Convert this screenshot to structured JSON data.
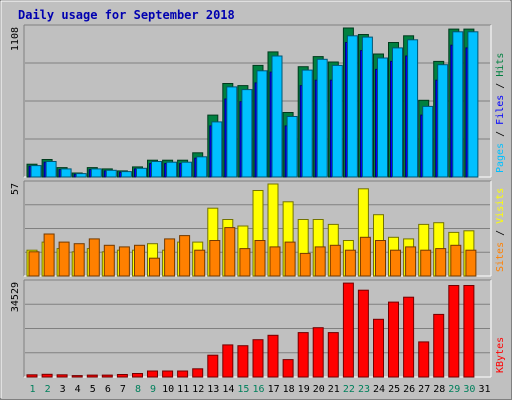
{
  "chart_data": {
    "type": "bar",
    "title": "Daily usage for September 2018",
    "categories": [
      "1",
      "2",
      "3",
      "4",
      "5",
      "6",
      "7",
      "8",
      "9",
      "10",
      "11",
      "12",
      "13",
      "14",
      "15",
      "16",
      "17",
      "18",
      "19",
      "20",
      "21",
      "22",
      "23",
      "24",
      "25",
      "26",
      "27",
      "28",
      "29",
      "30",
      "31"
    ],
    "weekend_days": [
      "1",
      "2",
      "8",
      "9",
      "15",
      "16",
      "22",
      "23",
      "29",
      "30"
    ],
    "colors": {
      "hits": "#008040",
      "files": "#0000ff",
      "pages": "#00c0ff",
      "visits": "#ffff00",
      "sites": "#ff8000",
      "kbytes": "#ff0000",
      "background": "#c0c0c0",
      "title": "#0000b0",
      "weekday_label": "#000000",
      "weekend_label": "#00805c"
    },
    "panels": [
      {
        "id": "hits",
        "ymax_label": "1108",
        "legend": [
          {
            "key": "pages",
            "text": "Pages",
            "color": "#00c0ff"
          },
          {
            "key": "files",
            "text": "Files",
            "color": "#0000ff"
          },
          {
            "key": "hits",
            "text": "Hits",
            "color": "#008040"
          }
        ],
        "ylim": [
          0,
          1108
        ],
        "series": [
          {
            "name": "Hits",
            "values": [
              95,
              130,
              70,
              30,
              70,
              60,
              45,
              75,
              125,
              125,
              125,
              180,
              460,
              695,
              680,
              830,
              930,
              480,
              820,
              895,
              855,
              1108,
              1060,
              915,
              1000,
              1050,
              570,
              860,
              1100,
              1100,
              0
            ]
          },
          {
            "name": "Files",
            "values": [
              80,
              110,
              55,
              20,
              55,
              45,
              35,
              60,
              100,
              100,
              100,
              140,
              380,
              580,
              560,
              700,
              780,
              380,
              680,
              720,
              720,
              1000,
              940,
              800,
              860,
              900,
              460,
              720,
              980,
              960,
              0
            ]
          },
          {
            "name": "Pages",
            "values": [
              85,
              115,
              60,
              25,
              60,
              50,
              40,
              65,
              115,
              110,
              110,
              150,
              410,
              670,
              650,
              790,
              900,
              450,
              795,
              875,
              830,
              1050,
              1040,
              885,
              960,
              1020,
              525,
              835,
              1080,
              1080,
              0
            ]
          }
        ]
      },
      {
        "id": "visits",
        "ymax_label": "57",
        "legend": [
          {
            "key": "sites",
            "text": "Sites",
            "color": "#ff8000"
          },
          {
            "key": "visits",
            "text": "Visits",
            "color": "#ffff00"
          }
        ],
        "ylim": [
          0,
          57
        ],
        "series": [
          {
            "name": "Visits",
            "values": [
              16,
              21,
              17,
              15,
              17,
              15,
              16,
              16,
              20,
              16,
              21,
              21,
              42,
              35,
              31,
              53,
              57,
              46,
              35,
              35,
              32,
              22,
              54,
              38,
              24,
              23,
              32,
              33,
              27,
              28,
              0
            ]
          },
          {
            "name": "Sites",
            "values": [
              15,
              26,
              21,
              20,
              23,
              19,
              18,
              19,
              11,
              23,
              25,
              16,
              22,
              30,
              17,
              22,
              18,
              21,
              14,
              18,
              19,
              16,
              24,
              22,
              16,
              18,
              16,
              17,
              19,
              16,
              0
            ]
          }
        ]
      },
      {
        "id": "kbytes",
        "ymax_label": "34529",
        "legend": [
          {
            "key": "kbytes",
            "text": "KBytes",
            "color": "#ff0000"
          }
        ],
        "ylim": [
          0,
          34529
        ],
        "series": [
          {
            "name": "KBytes",
            "values": [
              800,
              1000,
              800,
              500,
              700,
              700,
              900,
              1300,
              2200,
              2200,
              2200,
              3000,
              8000,
              11800,
              11500,
              13700,
              15300,
              6400,
              16300,
              18100,
              16300,
              34500,
              31900,
              21200,
              27500,
              29300,
              12900,
              23000,
              33600,
              33600,
              0
            ]
          }
        ]
      }
    ]
  }
}
